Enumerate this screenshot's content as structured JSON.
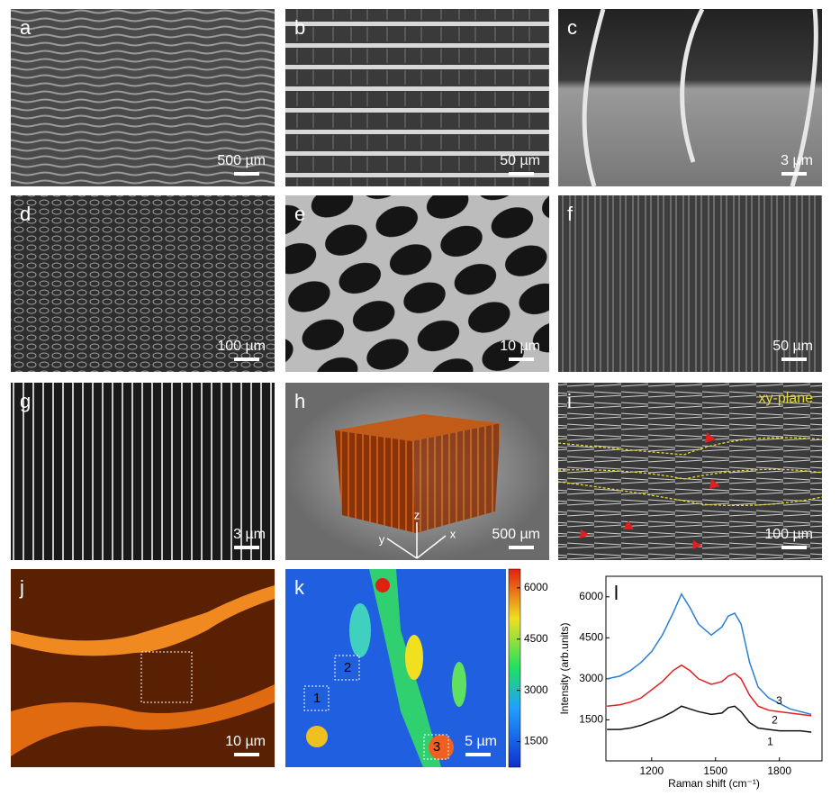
{
  "panels": [
    {
      "label": "a",
      "scale_bar": "500 µm"
    },
    {
      "label": "b",
      "scale_bar": "50 µm"
    },
    {
      "label": "c",
      "scale_bar": "3 µm"
    },
    {
      "label": "d",
      "scale_bar": "100 µm"
    },
    {
      "label": "e",
      "scale_bar": "10 µm"
    },
    {
      "label": "f",
      "scale_bar": "50 µm"
    },
    {
      "label": "g",
      "scale_bar": "3 µm"
    },
    {
      "label": "h",
      "scale_bar": "500 µm",
      "axes": [
        "z",
        "y",
        "x"
      ]
    },
    {
      "label": "i",
      "scale_bar": "100 µm",
      "annotation": "xy-plane"
    },
    {
      "label": "j",
      "scale_bar": "10 µm"
    },
    {
      "label": "k",
      "scale_bar": "5 µm",
      "regions": [
        "1",
        "2",
        "3"
      ],
      "clim": [
        750,
        6550
      ],
      "cticks": [
        1500,
        3000,
        4500,
        6000
      ]
    }
  ],
  "chart_data": {
    "type": "line",
    "label": "l",
    "xlabel": "Raman shift (cm⁻¹)",
    "ylabel": "Intensity (arb.units)",
    "x": [
      990,
      1050,
      1100,
      1150,
      1200,
      1250,
      1300,
      1340,
      1380,
      1420,
      1480,
      1530,
      1560,
      1590,
      1620,
      1660,
      1700,
      1750,
      1800,
      1850,
      1900,
      1950
    ],
    "series": [
      {
        "name": "1",
        "color": "#111111",
        "values": [
          1150,
          1150,
          1200,
          1300,
          1450,
          1600,
          1800,
          2000,
          1900,
          1800,
          1700,
          1750,
          1950,
          2000,
          1800,
          1400,
          1200,
          1150,
          1100,
          1100,
          1100,
          1050
        ]
      },
      {
        "name": "2",
        "color": "#e02020",
        "values": [
          2000,
          2050,
          2150,
          2300,
          2600,
          2900,
          3300,
          3500,
          3300,
          3000,
          2800,
          2900,
          3100,
          3200,
          3000,
          2400,
          2000,
          1850,
          1800,
          1750,
          1700,
          1650
        ]
      },
      {
        "name": "3",
        "color": "#2a7fd4",
        "values": [
          3000,
          3100,
          3300,
          3600,
          4000,
          4600,
          5400,
          6100,
          5600,
          5000,
          4600,
          4900,
          5300,
          5400,
          5000,
          3600,
          2700,
          2300,
          2100,
          1900,
          1800,
          1700
        ]
      }
    ],
    "xlim": [
      985,
      2000
    ],
    "ylim": [
      0,
      6750
    ],
    "xticks": [
      1200,
      1500,
      1800
    ],
    "yticks": [
      1500,
      3000,
      4500,
      6000
    ]
  }
}
